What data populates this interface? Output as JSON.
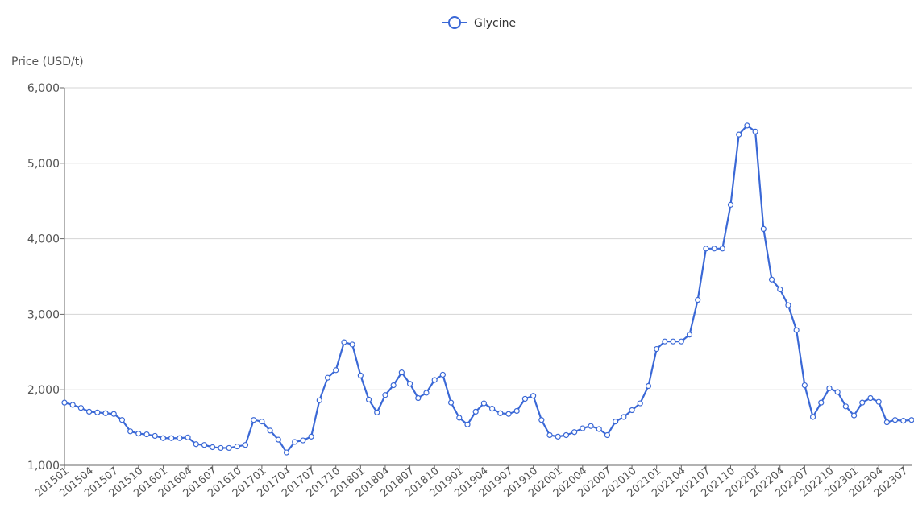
{
  "chart_data": {
    "type": "line",
    "ylabel": "Price (USD/t)",
    "ylim": [
      1000,
      6000
    ],
    "yticks": [
      "1,000",
      "2,000",
      "3,000",
      "4,000",
      "5,000",
      "6,000"
    ],
    "grid": true,
    "legend_position": "top-center",
    "series_color": "#3a68d6",
    "x_tick_labels": [
      "201501",
      "201504",
      "201507",
      "201510",
      "201601",
      "201604",
      "201607",
      "201610",
      "201701",
      "201704",
      "201707",
      "201710",
      "201801",
      "201804",
      "201807",
      "201810",
      "201901",
      "201904",
      "201907",
      "201910",
      "202001",
      "202004",
      "202007",
      "202010",
      "202101",
      "202104",
      "202107",
      "202110",
      "202201",
      "202204",
      "202207",
      "202210",
      "202301",
      "202304",
      "202307"
    ],
    "x": [
      "201501",
      "201502",
      "201503",
      "201504",
      "201505",
      "201506",
      "201507",
      "201508",
      "201509",
      "201510",
      "201511",
      "201512",
      "201601",
      "201602",
      "201603",
      "201604",
      "201605",
      "201606",
      "201607",
      "201608",
      "201609",
      "201610",
      "201611",
      "201612",
      "201701",
      "201702",
      "201703",
      "201704",
      "201705",
      "201706",
      "201707",
      "201708",
      "201709",
      "201710",
      "201711",
      "201712",
      "201801",
      "201802",
      "201803",
      "201804",
      "201805",
      "201806",
      "201807",
      "201808",
      "201809",
      "201810",
      "201811",
      "201812",
      "201901",
      "201902",
      "201903",
      "201904",
      "201905",
      "201906",
      "201907",
      "201908",
      "201909",
      "201910",
      "201911",
      "201912",
      "202001",
      "202002",
      "202003",
      "202004",
      "202005",
      "202006",
      "202007",
      "202008",
      "202009",
      "202010",
      "202011",
      "202012",
      "202101",
      "202102",
      "202103",
      "202104",
      "202105",
      "202106",
      "202107",
      "202108",
      "202109",
      "202110",
      "202111",
      "202112",
      "202201",
      "202202",
      "202203",
      "202204",
      "202205",
      "202206",
      "202207",
      "202208",
      "202209",
      "202210",
      "202211",
      "202212",
      "202301",
      "202302",
      "202303",
      "202304",
      "202305",
      "202306",
      "202307",
      "202308"
    ],
    "series": [
      {
        "name": "Glycine",
        "values": [
          1830,
          1800,
          1760,
          1710,
          1700,
          1690,
          1680,
          1600,
          1450,
          1420,
          1410,
          1390,
          1360,
          1360,
          1360,
          1370,
          1280,
          1270,
          1240,
          1230,
          1230,
          1250,
          1270,
          1600,
          1580,
          1460,
          1340,
          1170,
          1310,
          1330,
          1380,
          1860,
          2160,
          2260,
          2630,
          2600,
          2190,
          1870,
          1700,
          1930,
          2060,
          2230,
          2080,
          1890,
          1960,
          2130,
          2200,
          1830,
          1630,
          1540,
          1710,
          1820,
          1750,
          1690,
          1680,
          1720,
          1880,
          1920,
          1600,
          1400,
          1380,
          1400,
          1440,
          1490,
          1520,
          1480,
          1400,
          1580,
          1640,
          1730,
          1820,
          2050,
          2540,
          2640,
          2640,
          2640,
          2730,
          3190,
          3870,
          3870,
          3870,
          4450,
          5380,
          5500,
          5420,
          4130,
          3460,
          3330,
          3120,
          2790,
          2060,
          1640,
          1830,
          2020,
          1970,
          1780,
          1660,
          1830,
          1890,
          1840,
          1570,
          1600,
          1590,
          1600
        ]
      }
    ]
  }
}
